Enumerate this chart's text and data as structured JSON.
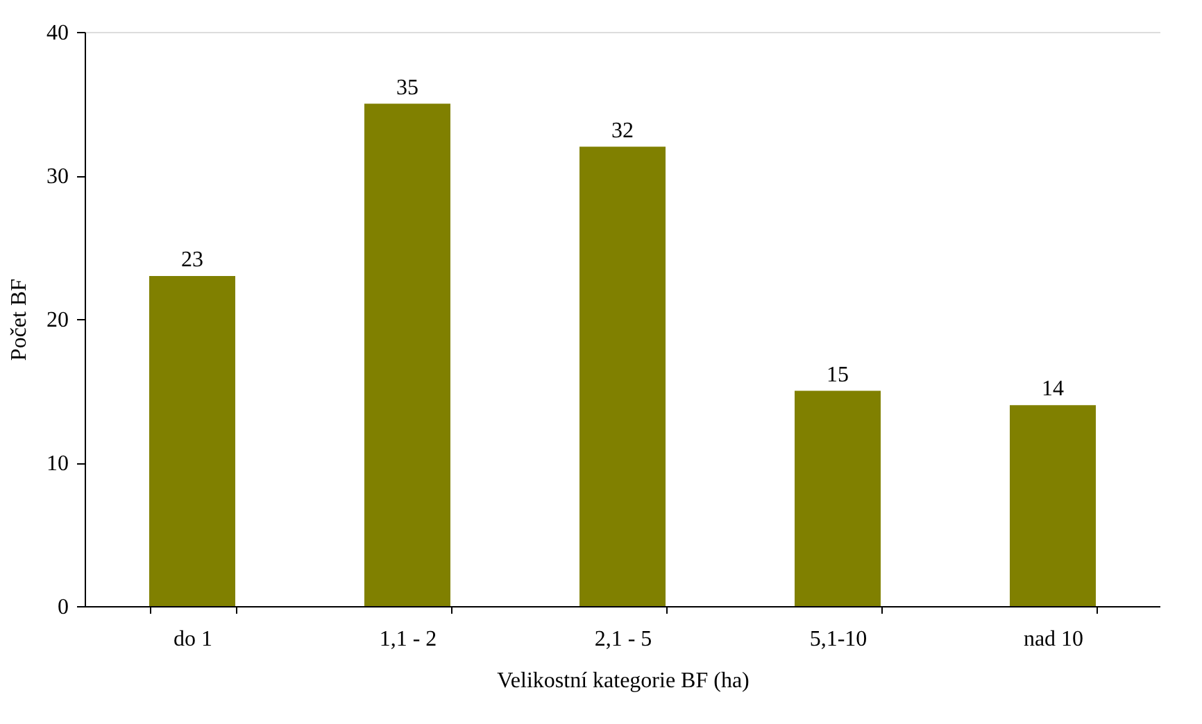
{
  "chart_data": {
    "type": "bar",
    "xlabel": "Velikostní kategorie BF (ha)",
    "ylabel": "Počet BF",
    "categories": [
      "do 1",
      "1,1 - 2",
      "2,1 - 5",
      "5,1-10",
      "nad 10"
    ],
    "values": [
      23,
      35,
      32,
      15,
      14
    ],
    "color": "#808000",
    "ylim": [
      0,
      40
    ],
    "yticks": [
      0,
      10,
      20,
      30,
      40
    ],
    "data_labels": true
  }
}
